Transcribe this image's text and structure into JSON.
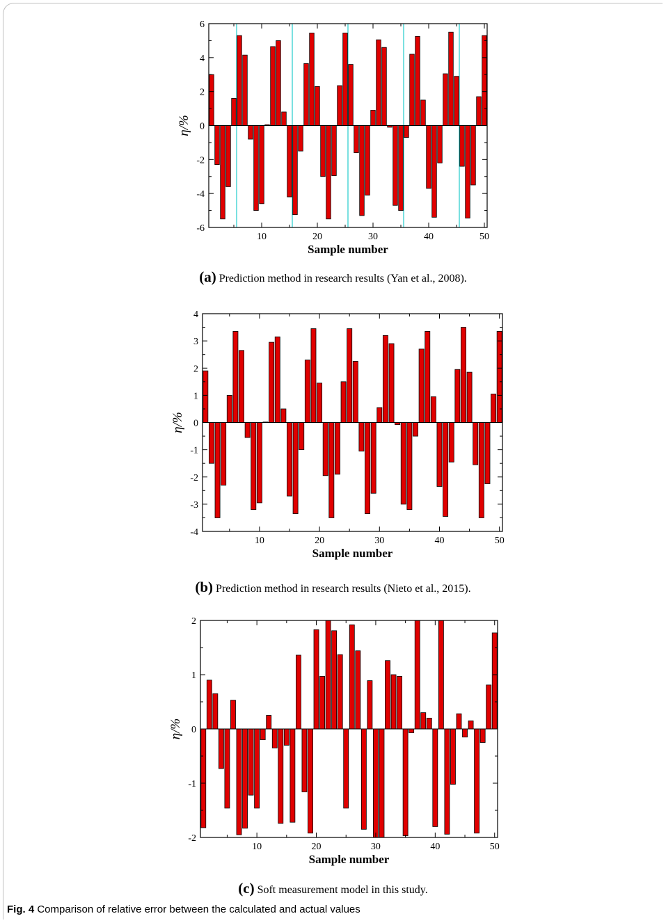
{
  "figure": {
    "label": "Fig. 4",
    "text": "Comparison of relative error between the calculated and actual values"
  },
  "colors": {
    "bar_fill": "#e00000",
    "bar_stroke": "#000000",
    "marker_line": "#22cccc"
  },
  "chart_data": [
    {
      "id": "a",
      "type": "bar",
      "caption_letter": "(a)",
      "caption_text": "Prediction method in research results (Yan et al., 2008).",
      "xlabel": "Sample number",
      "ylabel": "η/%",
      "xlim": [
        0.5,
        50.5
      ],
      "ylim": [
        -6,
        6
      ],
      "xticks": [
        10,
        20,
        30,
        40,
        50
      ],
      "yticks": [
        -6,
        -4,
        -2,
        0,
        2,
        4,
        6
      ],
      "vertical_lines_x": [
        5.5,
        15.5,
        25.5,
        35.5,
        45.5
      ],
      "x": [
        1,
        2,
        3,
        4,
        5,
        6,
        7,
        8,
        9,
        10,
        11,
        12,
        13,
        14,
        15,
        16,
        17,
        18,
        19,
        20,
        21,
        22,
        23,
        24,
        25,
        26,
        27,
        28,
        29,
        30,
        31,
        32,
        33,
        34,
        35,
        36,
        37,
        38,
        39,
        40,
        41,
        42,
        43,
        44,
        45,
        46,
        47,
        48,
        49,
        50
      ],
      "values": [
        3.0,
        -2.3,
        -5.5,
        -3.6,
        1.6,
        5.3,
        4.15,
        -0.8,
        -5.0,
        -4.6,
        0.05,
        4.65,
        5.0,
        0.8,
        -4.2,
        -5.25,
        -1.5,
        3.65,
        5.45,
        2.3,
        -3.0,
        -5.5,
        -2.95,
        2.35,
        5.45,
        3.6,
        -1.6,
        -5.3,
        -4.1,
        0.9,
        5.05,
        4.6,
        -0.1,
        -4.7,
        -5.0,
        -0.7,
        4.2,
        5.25,
        1.5,
        -3.7,
        -5.4,
        -2.2,
        3.05,
        5.5,
        2.9,
        -2.4,
        -5.45,
        -3.5,
        1.7,
        5.3
      ]
    },
    {
      "id": "b",
      "type": "bar",
      "caption_letter": "(b)",
      "caption_text": "Prediction method in research results (Nieto et al., 2015).",
      "xlabel": "Sample number",
      "ylabel": "η/%",
      "xlim": [
        0.5,
        50.5
      ],
      "ylim": [
        -4,
        4
      ],
      "xticks": [
        10,
        20,
        30,
        40,
        50
      ],
      "yticks": [
        -4,
        -3,
        -2,
        -1,
        0,
        1,
        2,
        3,
        4
      ],
      "vertical_lines_x": [],
      "x": [
        1,
        2,
        3,
        4,
        5,
        6,
        7,
        8,
        9,
        10,
        11,
        12,
        13,
        14,
        15,
        16,
        17,
        18,
        19,
        20,
        21,
        22,
        23,
        24,
        25,
        26,
        27,
        28,
        29,
        30,
        31,
        32,
        33,
        34,
        35,
        36,
        37,
        38,
        39,
        40,
        41,
        42,
        43,
        44,
        45,
        46,
        47,
        48,
        49,
        50
      ],
      "values": [
        1.9,
        -1.5,
        -3.5,
        -2.3,
        1.0,
        3.35,
        2.65,
        -0.55,
        -3.2,
        -2.95,
        0.02,
        2.95,
        3.15,
        0.5,
        -2.7,
        -3.35,
        -1.0,
        2.3,
        3.45,
        1.45,
        -1.95,
        -3.5,
        -1.9,
        1.5,
        3.45,
        2.25,
        -1.05,
        -3.35,
        -2.6,
        0.55,
        3.2,
        2.9,
        -0.08,
        -3.0,
        -3.2,
        -0.5,
        2.7,
        3.35,
        0.95,
        -2.35,
        -3.45,
        -1.45,
        1.95,
        3.5,
        1.85,
        -1.55,
        -3.5,
        -2.25,
        1.05,
        3.35
      ]
    },
    {
      "id": "c",
      "type": "bar",
      "caption_letter": "(c)",
      "caption_text": "Soft measurement model in this study.",
      "xlabel": "Sample number",
      "ylabel": "η/%",
      "xlim": [
        0.5,
        50.5
      ],
      "ylim": [
        -2,
        2
      ],
      "xticks": [
        10,
        20,
        30,
        40,
        50
      ],
      "yticks": [
        -2,
        -1,
        0,
        1,
        2
      ],
      "vertical_lines_x": [],
      "x": [
        1,
        2,
        3,
        4,
        5,
        6,
        7,
        8,
        9,
        10,
        11,
        12,
        13,
        14,
        15,
        16,
        17,
        18,
        19,
        20,
        21,
        22,
        23,
        24,
        25,
        26,
        27,
        28,
        29,
        30,
        31,
        32,
        33,
        34,
        35,
        36,
        37,
        38,
        39,
        40,
        41,
        42,
        43,
        44,
        45,
        46,
        47,
        48,
        49,
        50
      ],
      "values": [
        -1.82,
        0.9,
        0.65,
        -0.73,
        -1.46,
        0.53,
        -1.95,
        -1.83,
        -1.22,
        -1.46,
        -0.2,
        0.25,
        -0.35,
        -1.74,
        -0.3,
        -1.72,
        1.36,
        -1.16,
        -1.92,
        1.83,
        0.97,
        2.0,
        1.81,
        1.37,
        -1.46,
        1.92,
        1.44,
        -1.85,
        0.89,
        -2.0,
        -2.0,
        1.26,
        1.0,
        0.97,
        -1.97,
        -0.07,
        2.0,
        0.3,
        0.2,
        -1.8,
        2.0,
        -1.94,
        -1.02,
        0.28,
        -0.15,
        0.15,
        -1.92,
        -0.25,
        0.81,
        1.77
      ]
    }
  ]
}
